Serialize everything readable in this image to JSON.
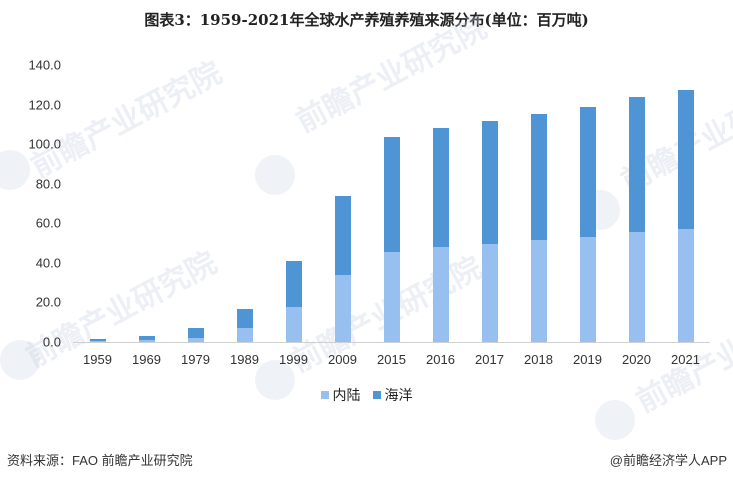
{
  "title": "图表3：1959-2021年全球水产养殖养殖来源分布(单位：百万吨)",
  "watermark": "前瞻产业研究院",
  "colors": {
    "inland": "#97C0F0",
    "ocean": "#4F94D4",
    "axis": "#D0D0D0"
  },
  "legend": [
    {
      "label": "内陆",
      "color": "#97C0F0"
    },
    {
      "label": "海洋",
      "color": "#4F94D4"
    }
  ],
  "footer": {
    "source": "资料来源：FAO 前瞻产业研究院",
    "credit": "@前瞻经济学人APP"
  },
  "chart_data": {
    "type": "bar",
    "stacked": true,
    "title": "图表3：1959-2021年全球水产养殖养殖来源分布(单位：百万吨)",
    "xlabel": "",
    "ylabel": "百万吨",
    "ylim": [
      0,
      140
    ],
    "yticks": [
      "0.0",
      "20.0",
      "40.0",
      "60.0",
      "80.0",
      "100.0",
      "120.0",
      "140.0"
    ],
    "grid": false,
    "legend_position": "bottom",
    "categories": [
      "1959",
      "1969",
      "1979",
      "1989",
      "1999",
      "2009",
      "2015",
      "2016",
      "2017",
      "2018",
      "2019",
      "2020",
      "2021"
    ],
    "series": [
      {
        "name": "内陆",
        "color": "#97C0F0",
        "values": [
          0.6,
          1.0,
          2.0,
          7.1,
          17.7,
          33.8,
          45.5,
          48.0,
          49.5,
          51.5,
          53.0,
          55.6,
          57.1
        ]
      },
      {
        "name": "海洋",
        "color": "#4F94D4",
        "values": [
          0.9,
          2.0,
          5.1,
          9.6,
          23.3,
          39.9,
          58.0,
          60.0,
          62.1,
          63.5,
          66.0,
          68.4,
          70.2
        ]
      }
    ]
  }
}
